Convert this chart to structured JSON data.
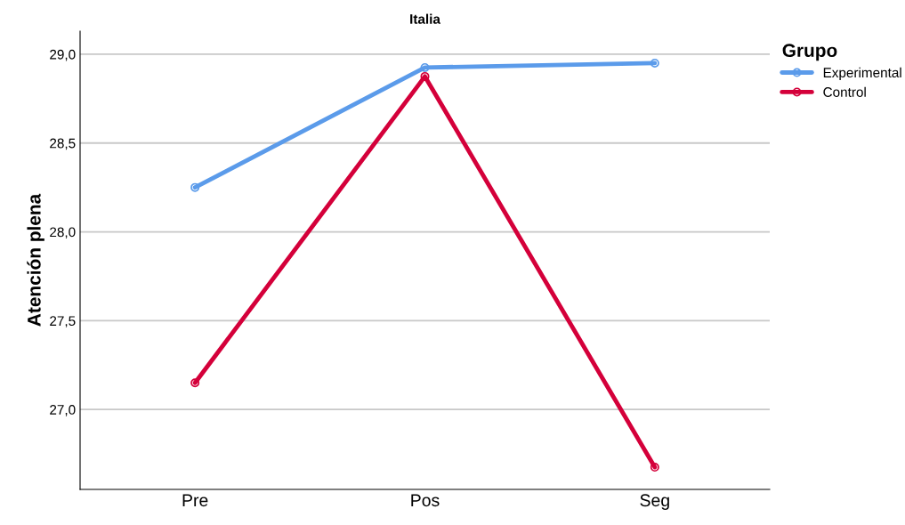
{
  "chart_data": {
    "type": "line",
    "title": "Italia",
    "ylabel": "Atención plena",
    "legend_title": "Grupo",
    "categories": [
      "Pre",
      "Pos",
      "Seg"
    ],
    "series": [
      {
        "name": "Experimental",
        "color": "#5b9bea",
        "values": [
          28.25,
          28.925,
          28.95
        ]
      },
      {
        "name": "Control",
        "color": "#d4003a",
        "values": [
          27.15,
          28.875,
          26.675
        ]
      }
    ],
    "ylim": [
      26.55,
      29.13
    ],
    "yticks": [
      {
        "value": 27.0,
        "label": "27,0"
      },
      {
        "value": 27.5,
        "label": "27,5"
      },
      {
        "value": 28.0,
        "label": "28,0"
      },
      {
        "value": 28.5,
        "label": "28,5"
      },
      {
        "value": 29.0,
        "label": "29,0"
      }
    ],
    "grid": "y",
    "legend": "top right",
    "marker": "circle",
    "line_style": "solid"
  }
}
